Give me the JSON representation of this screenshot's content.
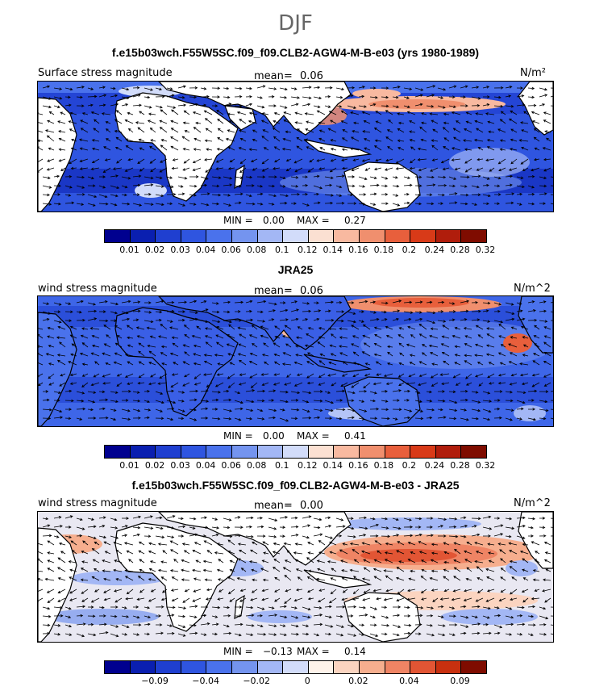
{
  "season": "DJF",
  "colors": {
    "abs_scale": [
      "#00008f",
      "#0a1fb0",
      "#1f3fd0",
      "#2f55e0",
      "#4a72ec",
      "#7494ef",
      "#a3b7f5",
      "#d2dcfa",
      "#fbe0d2",
      "#f8b9a0",
      "#f08f6e",
      "#e85f3c",
      "#d83a18",
      "#b01d0c",
      "#7f0c00"
    ],
    "diff_scale": [
      "#00008f",
      "#0a1fb0",
      "#1f3fd0",
      "#2f55e0",
      "#4a72ec",
      "#7494ef",
      "#a3b7f5",
      "#d2dcfa",
      "#fff3ea",
      "#fbd4c0",
      "#f6ae8e",
      "#ef8464",
      "#e25534",
      "#c8300f",
      "#7f0c00"
    ],
    "land": "#ffffff"
  },
  "panels": [
    {
      "title": "f.e15b03wch.F55W5SC.f09_f09.CLB2-AGW4-M-B-e03 (yrs 1980-1989)",
      "left_label": "Surface stress magnitude",
      "mean_label": "mean=",
      "mean_value": "0.06",
      "units": "N/m²",
      "min_label": "MIN =",
      "min_value": "0.00",
      "max_label": "MAX =",
      "max_value": "0.27",
      "ticks": [
        "0.01",
        "0.02",
        "0.03",
        "0.04",
        "0.06",
        "0.08",
        "0.1",
        "0.12",
        "0.14",
        "0.16",
        "0.18",
        "0.2",
        "0.24",
        "0.28",
        "0.32"
      ]
    },
    {
      "title": "JRA25",
      "left_label": "wind stress magnitude",
      "mean_label": "mean=",
      "mean_value": "0.06",
      "units": "N/m^2",
      "min_label": "MIN =",
      "min_value": "0.00",
      "max_label": "MAX =",
      "max_value": "0.41",
      "ticks": [
        "0.01",
        "0.02",
        "0.03",
        "0.04",
        "0.06",
        "0.08",
        "0.1",
        "0.12",
        "0.14",
        "0.16",
        "0.18",
        "0.2",
        "0.24",
        "0.28",
        "0.32"
      ]
    },
    {
      "title": "f.e15b03wch.F55W5SC.f09_f09.CLB2-AGW4-M-B-e03 - JRA25",
      "left_label": "wind stress magnitude",
      "mean_label": "mean=",
      "mean_value": "0.00",
      "units": "N/m^2",
      "min_label": "MIN =",
      "min_value": "−0.13",
      "max_label": "MAX =",
      "max_value": "0.14",
      "ticks": [
        "−0.09",
        "−0.04",
        "−0.02",
        "0",
        "0.02",
        "0.04",
        "0.09"
      ]
    }
  ]
}
